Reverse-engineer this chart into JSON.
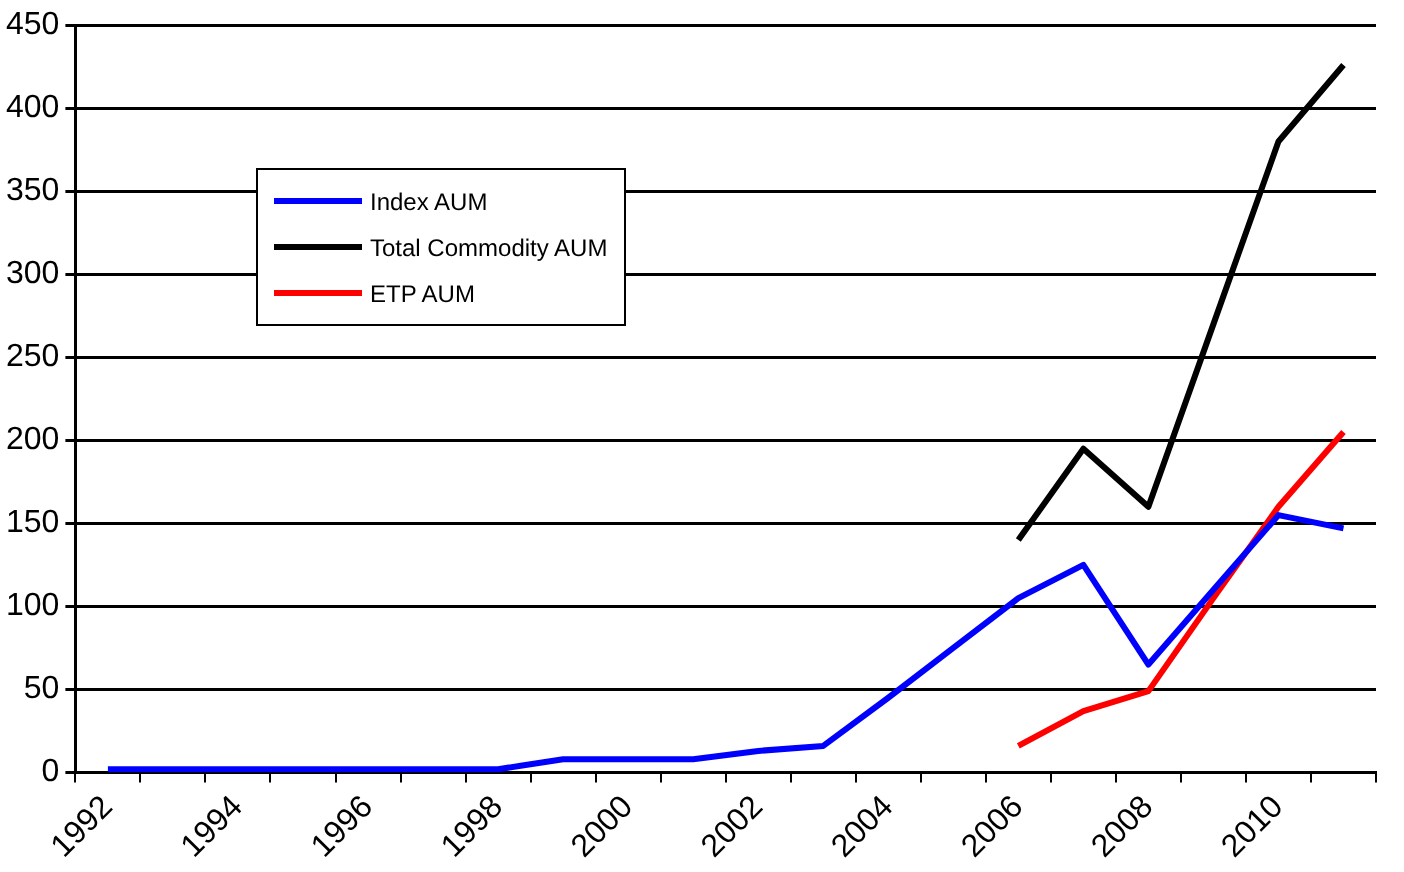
{
  "chart_data": {
    "type": "line",
    "categories": [
      "1992",
      null,
      "1994",
      null,
      "1996",
      null,
      "1998",
      null,
      "2000",
      null,
      "2002",
      null,
      "2004",
      null,
      "2006",
      null,
      "2008",
      null,
      "2010",
      null
    ],
    "series": [
      {
        "name": "Index AUM",
        "color": "#0000ff",
        "values": [
          2,
          2,
          2,
          2,
          2,
          2,
          2,
          8,
          8,
          8,
          13,
          16,
          45,
          75,
          105,
          125,
          65,
          110,
          155,
          147
        ]
      },
      {
        "name": "Total Commodity AUM",
        "color": "#000000",
        "values": [
          null,
          null,
          null,
          null,
          null,
          null,
          null,
          null,
          null,
          null,
          null,
          null,
          null,
          null,
          140,
          195,
          160,
          270,
          380,
          426
        ]
      },
      {
        "name": "ETP AUM",
        "color": "#ff0000",
        "values": [
          null,
          null,
          null,
          null,
          null,
          null,
          null,
          null,
          null,
          null,
          null,
          null,
          null,
          null,
          16,
          37,
          49,
          105,
          160,
          205
        ]
      }
    ],
    "ylim": [
      0,
      450
    ],
    "yticks": [
      0,
      50,
      100,
      150,
      200,
      250,
      300,
      350,
      400,
      450
    ],
    "grid": "y",
    "legend": "top left",
    "marker": "none",
    "line_style": "solid"
  }
}
